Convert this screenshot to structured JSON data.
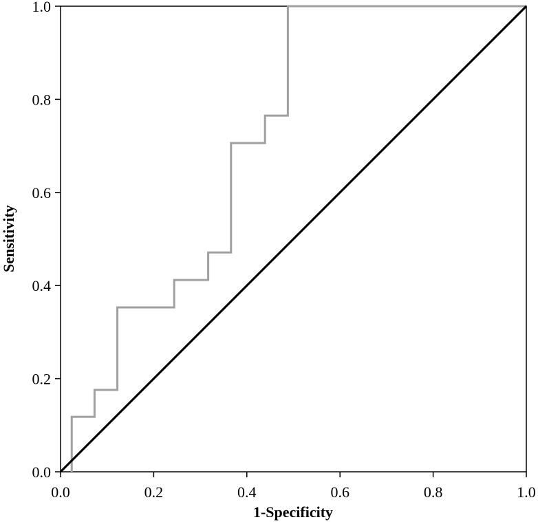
{
  "chart_data": {
    "type": "line",
    "title": "",
    "xlabel": "1-Specificity",
    "ylabel": "Sensitivity",
    "xlim": [
      0,
      1
    ],
    "ylim": [
      0,
      1
    ],
    "grid": false,
    "legend": "none",
    "x_ticks": [
      "0.0",
      "0.2",
      "0.4",
      "0.6",
      "0.8",
      "1.0"
    ],
    "y_ticks": [
      "0.0",
      "0.2",
      "0.4",
      "0.6",
      "0.8",
      "1.0"
    ],
    "series": [
      {
        "color": "#a0a0a0",
        "step": true,
        "points": [
          [
            0.024,
            0.0
          ],
          [
            0.024,
            0.118
          ],
          [
            0.073,
            0.118
          ],
          [
            0.073,
            0.176
          ],
          [
            0.122,
            0.176
          ],
          [
            0.122,
            0.353
          ],
          [
            0.244,
            0.353
          ],
          [
            0.244,
            0.412
          ],
          [
            0.317,
            0.412
          ],
          [
            0.317,
            0.471
          ],
          [
            0.366,
            0.471
          ],
          [
            0.366,
            0.706
          ],
          [
            0.439,
            0.706
          ],
          [
            0.439,
            0.765
          ],
          [
            0.488,
            0.765
          ],
          [
            0.488,
            1.0
          ],
          [
            1.0,
            1.0
          ]
        ]
      },
      {
        "color": "#000000",
        "step": false,
        "points": [
          [
            0.0,
            0.0
          ],
          [
            1.0,
            1.0
          ]
        ]
      }
    ]
  }
}
